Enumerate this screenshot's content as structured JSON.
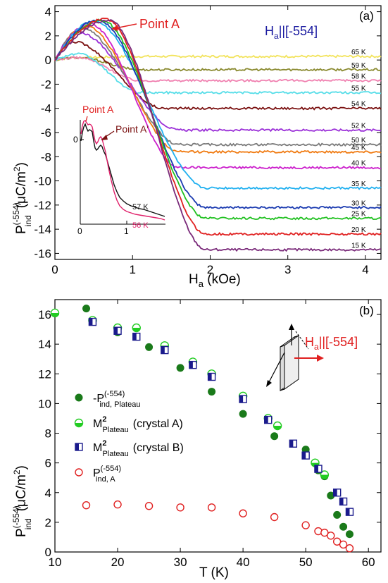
{
  "chart_data": [
    {
      "type": "line",
      "panel_label": "(a)",
      "xlabel_main": "H",
      "xlabel_sub": "a",
      "xlabel_tail": " (kOe)",
      "ylabel_main": "P",
      "ylabel_sub": "ind",
      "ylabel_sup": "(-554)",
      "ylabel_tail": "(μC/m",
      "ylabel_tail_sup": "2",
      "ylabel_end": ")",
      "xlim": [
        0,
        4.2
      ],
      "ylim": [
        -16.5,
        4.5
      ],
      "x_ticks": [
        "0",
        "1",
        "2",
        "3",
        "4"
      ],
      "y_ticks": [
        "4",
        "2",
        "0",
        "-2",
        "-4",
        "-6",
        "-8",
        "-10",
        "-12",
        "-14",
        "-16"
      ],
      "field_label_main": "H",
      "field_label_sub": "a",
      "field_label_tail": "||[-554]",
      "annotation": "Point A",
      "series": [
        {
          "name": "65 K",
          "color": "#f2e35a",
          "peak_x": 0.3,
          "peak_y": 0.2,
          "plateau": 0.3
        },
        {
          "name": "59 K",
          "color": "#8a8a30",
          "peak_x": 0.3,
          "peak_y": 0.2,
          "plateau": -0.8
        },
        {
          "name": "58 K",
          "color": "#f080b0",
          "peak_x": 0.3,
          "peak_y": 0.2,
          "plateau": -1.7
        },
        {
          "name": "55 K",
          "color": "#55dde8",
          "peak_x": 0.3,
          "peak_y": 0.5,
          "plateau": -2.7
        },
        {
          "name": "54 K",
          "color": "#7a1010",
          "peak_x": 0.25,
          "peak_y": 1.5,
          "plateau": -4.0
        },
        {
          "name": "52 K",
          "color": "#9b30d8",
          "peak_x": 0.3,
          "peak_y": 2.3,
          "plateau": -5.8
        },
        {
          "name": "50 K",
          "color": "#7a7a7a",
          "peak_x": 0.35,
          "peak_y": 2.6,
          "plateau": -7.0
        },
        {
          "name": "45 K",
          "color": "#f07a10",
          "peak_x": 0.4,
          "peak_y": 2.8,
          "plateau": -7.6
        },
        {
          "name": "40 K",
          "color": "#cc20cc",
          "peak_x": 0.45,
          "peak_y": 3.0,
          "plateau": -8.9
        },
        {
          "name": "35 K",
          "color": "#20b0f0",
          "peak_x": 0.5,
          "peak_y": 3.2,
          "plateau": -10.6
        },
        {
          "name": "30 K",
          "color": "#1a3ab0",
          "peak_x": 0.55,
          "peak_y": 3.3,
          "plateau": -12.2
        },
        {
          "name": "25 K",
          "color": "#20c020",
          "peak_x": 0.6,
          "peak_y": 3.3,
          "plateau": -13.1
        },
        {
          "name": "20 K",
          "color": "#e02020",
          "peak_x": 0.65,
          "peak_y": 3.4,
          "plateau": -14.4
        },
        {
          "name": "15 K",
          "color": "#7a2a7a",
          "peak_x": 0.7,
          "peak_y": 3.3,
          "plateau": -15.7
        }
      ],
      "inset": {
        "xlim": [
          0,
          1.5
        ],
        "x_ticks": [
          "0",
          "1"
        ],
        "y_tick": "0",
        "annotation_a": "Point A",
        "annotation_a_prime": "Point A′",
        "series": [
          {
            "name": "57 K",
            "color": "#111111"
          },
          {
            "name": "56 K",
            "color": "#e0206a"
          }
        ]
      }
    },
    {
      "type": "scatter",
      "panel_label": "(b)",
      "xlabel": "T (K)",
      "ylabel_main": "P",
      "ylabel_sub": "ind",
      "ylabel_sup": "(-554)",
      "ylabel_tail": "(μC/m",
      "ylabel_tail_sup": "2",
      "ylabel_end": ")",
      "xlim": [
        10,
        62
      ],
      "ylim": [
        0,
        17
      ],
      "x_ticks": [
        "10",
        "20",
        "30",
        "40",
        "50",
        "60"
      ],
      "y_ticks": [
        "0",
        "2",
        "4",
        "6",
        "8",
        "10",
        "12",
        "14",
        "16"
      ],
      "field_label_main": "H",
      "field_label_sub": "a",
      "field_label_tail": "||[-554]",
      "series": [
        {
          "name": "-P(-554) ind, Plateau",
          "legend_main": "-P",
          "legend_sup": "(-554)",
          "legend_sub": "ind, Plateau",
          "legend_tail": "",
          "marker": "filled-circle",
          "color": "#1a7a1a",
          "x": [
            15,
            20,
            25,
            30,
            35,
            40,
            45,
            50,
            52,
            53,
            54,
            55,
            56,
            57
          ],
          "y": [
            16.4,
            14.8,
            13.8,
            12.4,
            10.8,
            9.3,
            7.8,
            6.9,
            5.5,
            5.1,
            3.8,
            2.5,
            1.7,
            1.2
          ]
        },
        {
          "name": "M2 Plateau (crystal A)",
          "legend_main": "M",
          "legend_sup": "2",
          "legend_sub": "Plateau",
          "legend_tail": "(crystal A)",
          "marker": "half-circle",
          "color": "#22cc22",
          "x": [
            10,
            16,
            20,
            23,
            27.5,
            32,
            35,
            40,
            44,
            45.5,
            51.5,
            53
          ],
          "y": [
            16.1,
            15.6,
            15.1,
            15.1,
            13.9,
            12.8,
            12.0,
            10.5,
            9.0,
            8.5,
            6.0,
            5.2
          ]
        },
        {
          "name": "M2 Plateau (crystal B)",
          "legend_main": "M",
          "legend_sup": "2",
          "legend_sub": "Plateau",
          "legend_tail": "(crystal B)",
          "marker": "half-square",
          "color": "#1a1a8c",
          "x": [
            16,
            20,
            23,
            27.5,
            32,
            35,
            40,
            44,
            48,
            50,
            52,
            55,
            56,
            57
          ],
          "y": [
            15.5,
            14.9,
            14.5,
            13.6,
            12.6,
            11.8,
            10.3,
            8.9,
            7.3,
            6.5,
            5.6,
            4.0,
            3.4,
            2.7
          ]
        },
        {
          "name": "P(-554) ind, A",
          "legend_main": "P",
          "legend_sup": "(-554)",
          "legend_sub": "ind, A",
          "legend_tail": "",
          "marker": "open-circle",
          "color": "#e02020",
          "x": [
            15,
            20,
            25,
            30,
            35,
            40,
            45,
            50,
            52,
            53,
            54,
            55,
            56,
            57
          ],
          "y": [
            3.15,
            3.2,
            3.1,
            3.0,
            3.0,
            2.6,
            2.35,
            1.8,
            1.4,
            1.3,
            1.1,
            0.7,
            0.5,
            0.25
          ]
        }
      ]
    }
  ]
}
